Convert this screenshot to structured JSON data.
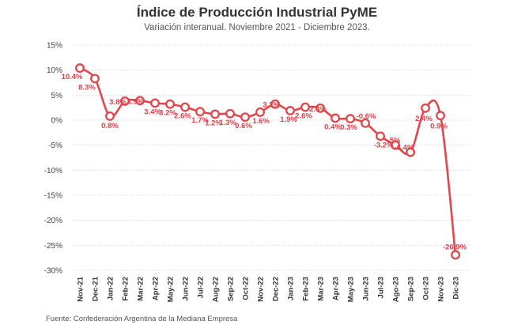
{
  "chart_data": {
    "type": "line",
    "title": "Índice de Producción Industrial PyME",
    "subtitle": "Variación interanual. Noviembre 2021 - Diciembre 2023.",
    "source": "Fuente: Confederación Argentina de la Mediana Empresa",
    "categories": [
      "Nov-21",
      "Dec-21",
      "Jan-22",
      "Feb-22",
      "Mar-22",
      "Apr-22",
      "May-22",
      "Jun-22",
      "Jul-22",
      "Aug-22",
      "Sep-22",
      "Oct-22",
      "Nov-22",
      "Dec-22",
      "Jan-23",
      "Feb-23",
      "Mar-23",
      "Apr-23",
      "May-23",
      "Jun-23",
      "Jul-23",
      "Ago-23",
      "Sep-23",
      "Oct-23",
      "Nov-23",
      "Dic-23"
    ],
    "series": [
      {
        "values": [
          10.4,
          8.3,
          0.8,
          3.8,
          3.9,
          3.4,
          3.2,
          2.6,
          1.7,
          1.2,
          1.3,
          0.6,
          1.6,
          3.2,
          1.9,
          2.6,
          2.4,
          0.4,
          0.3,
          -0.6,
          -3.2,
          -5,
          -6.4,
          2.4,
          0.9,
          -26.9
        ],
        "labels": [
          "10.4%",
          "8.3%",
          "0.8%",
          "3.8%",
          "3.9%",
          "3.4%",
          "3.2%",
          "2.6%",
          "1.7%",
          "1.2%",
          "1.3%",
          "0.6%",
          "1.6%",
          "3.2%",
          "1.9%",
          "2.6%",
          "2.4%",
          "0.4%",
          "0.3%",
          "-0.6%",
          "-3.2%",
          "-5%",
          "-6.4%",
          "2.4%",
          "0.9%",
          "-26.9%"
        ]
      }
    ],
    "yticks": [
      "15%",
      "10%",
      "5%",
      "0%",
      "-5%",
      "-10%",
      "-15%",
      "-20%",
      "-25%",
      "-30%"
    ],
    "ylim": [
      -30,
      15
    ],
    "grid": true,
    "line_color": "#e0474c",
    "label_color": "#d9414a"
  }
}
